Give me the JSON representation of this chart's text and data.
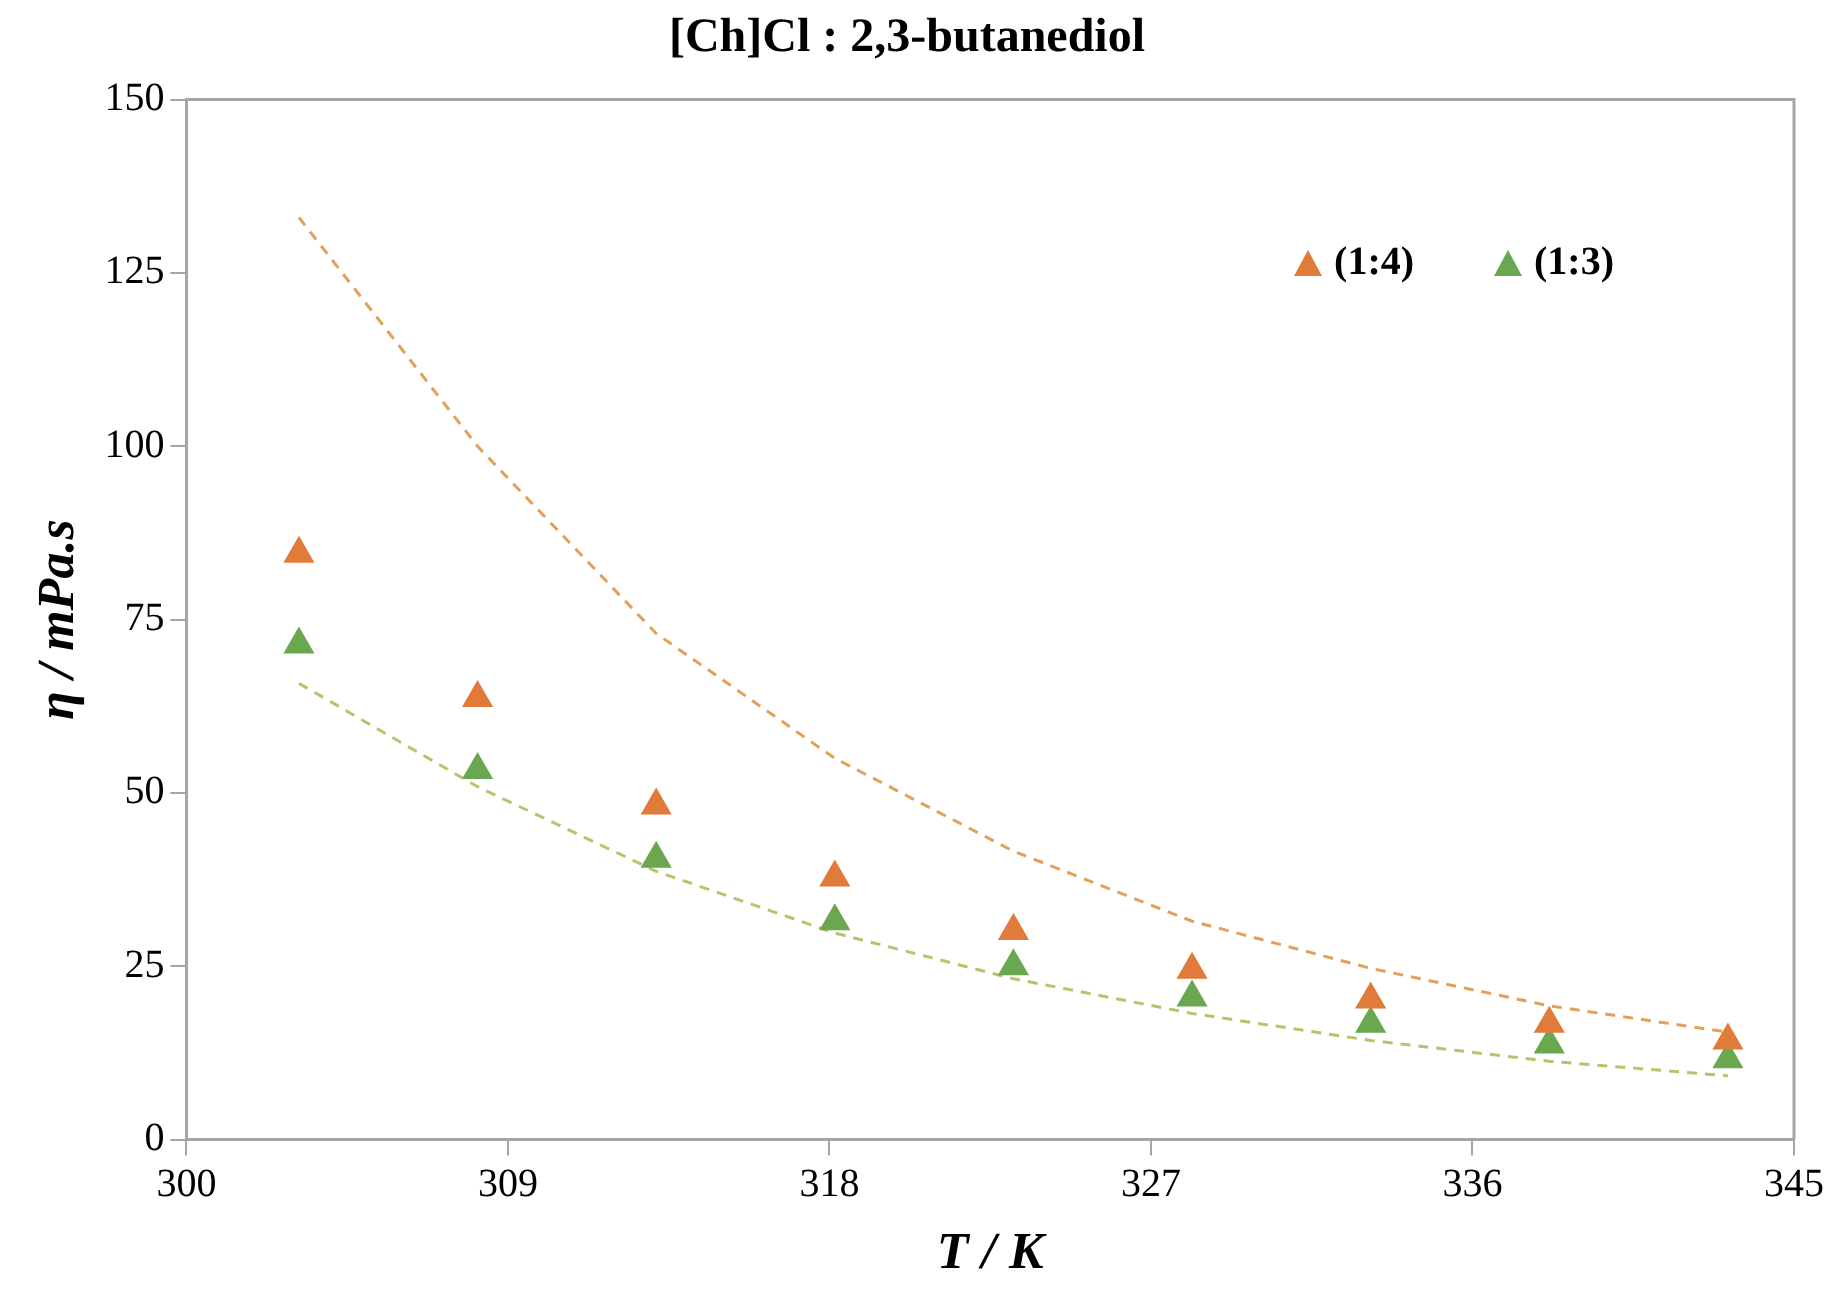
{
  "chart_data": {
    "type": "scatter",
    "title": "[Ch]Cl : 2,3-butanediol",
    "xlabel": "T / K",
    "ylabel": "η / mPa.s",
    "x": [
      303.15,
      308.15,
      313.15,
      318.15,
      323.15,
      328.15,
      333.15,
      338.15,
      343.15
    ],
    "series": [
      {
        "name": "(1:4)",
        "color": "#e07b39",
        "marker": "triangle",
        "values": [
          84.5,
          63.7,
          48.2,
          37.8,
          30.1,
          24.5,
          20.2,
          16.7,
          14.3
        ]
      },
      {
        "name": "(1:3)",
        "color": "#6aa84f",
        "marker": "triangle",
        "values": [
          71.4,
          53.3,
          40.5,
          31.5,
          25.0,
          20.5,
          16.7,
          13.7,
          11.6
        ]
      },
      {
        "type": "line",
        "color": "#e2a05a",
        "marker": "none",
        "line_style": "dashed",
        "x": [
          303.15,
          308.15,
          313.15,
          318.15,
          323.15,
          328.15,
          333.15,
          338.15,
          343.15
        ],
        "values": [
          133,
          100,
          73,
          55,
          41.6,
          31.5,
          24.7,
          19.3,
          15.5
        ]
      },
      {
        "type": "line",
        "color": "#b9c46a",
        "marker": "none",
        "line_style": "dashed",
        "x": [
          303.15,
          308.15,
          313.15,
          318.15,
          323.15,
          328.15,
          333.15,
          338.15,
          343.15
        ],
        "values": [
          65.8,
          50.9,
          38.7,
          29.8,
          23.2,
          18.2,
          14.3,
          11.3,
          9.2
        ]
      }
    ],
    "xlim": [
      300,
      345
    ],
    "xticks": [
      300,
      309,
      318,
      327,
      336,
      345
    ],
    "ylim": [
      0,
      150
    ],
    "yticks": [
      0,
      25,
      50,
      75,
      100,
      125,
      150
    ],
    "grid": false,
    "legend": "top right"
  }
}
